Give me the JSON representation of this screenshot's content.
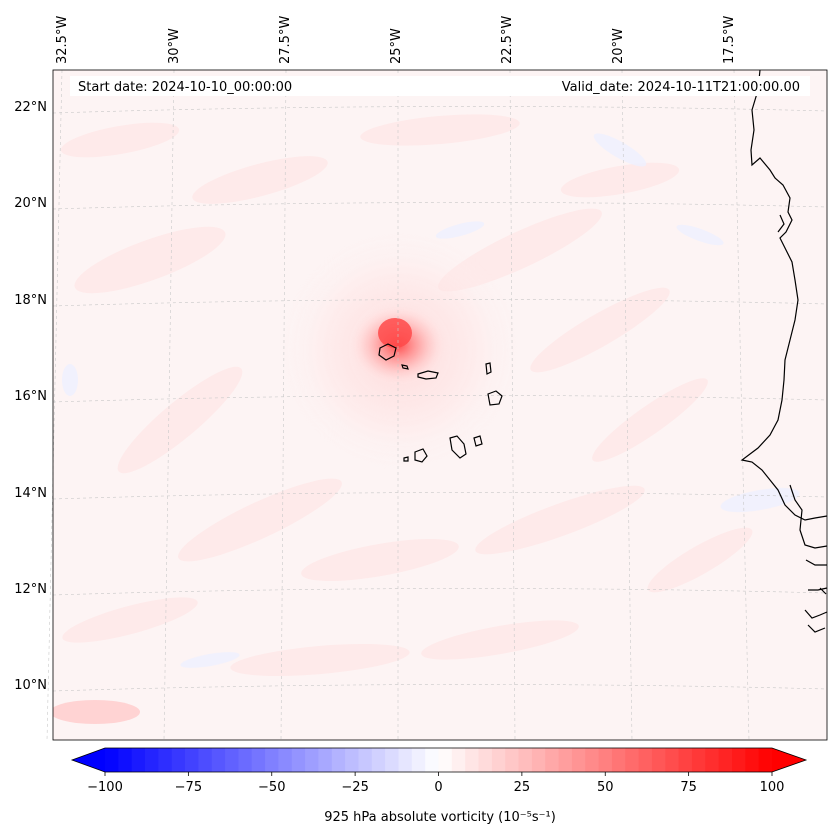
{
  "header": {
    "start_date": "Start date: 2024-10-10_00:00:00",
    "valid_date": "Valid_date: 2024-10-11T21:00:00.00"
  },
  "lon_labels": [
    "32.5°W",
    "30°W",
    "27.5°W",
    "25°W",
    "22.5°W",
    "20°W",
    "17.5°W"
  ],
  "lat_labels": [
    "22°N",
    "20°N",
    "18°N",
    "16°N",
    "14°N",
    "12°N",
    "10°N"
  ],
  "colorbar": {
    "label": "925 hPa absolute vorticity (10⁻⁵s⁻¹)",
    "tick_labels": [
      "−100",
      "−75",
      "−50",
      "−25",
      "0",
      "25",
      "50",
      "75",
      "100"
    ],
    "vmin": -100,
    "vmax": 100,
    "levels": 50,
    "colormap": "bwr",
    "low_color": "#0000ff",
    "mid_color": "#ffffff",
    "high_color": "#ff0000"
  },
  "field": {
    "vortex_center": {
      "lat": 17.1,
      "lon": -25.1
    },
    "vortex_peak_value": 70,
    "background_value": 4
  }
}
